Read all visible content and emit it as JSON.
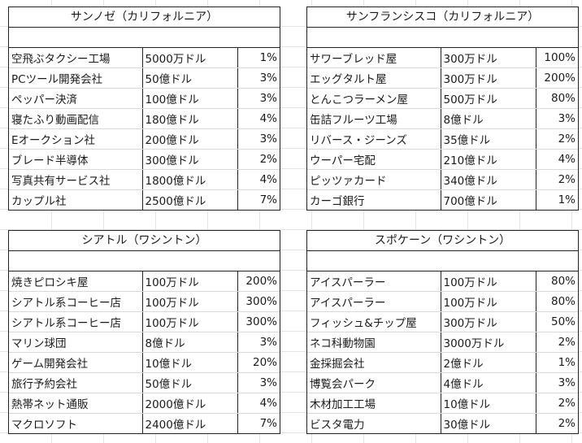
{
  "sheets": [
    {
      "title": "サンノゼ（カリフォルニア）",
      "rows": [
        [
          "空飛ぶタクシー工場",
          "5000万ドル",
          "1%"
        ],
        [
          "PCツール開発会社",
          "50億ドル",
          "3%"
        ],
        [
          "ペッパー決済",
          "100億ドル",
          "3%"
        ],
        [
          "寝たふり動画配信",
          "180億ドル",
          "4%"
        ],
        [
          "Eオークション社",
          "200億ドル",
          "3%"
        ],
        [
          "ブレード半導体",
          "300億ドル",
          "2%"
        ],
        [
          "写真共有サービス社",
          "1800億ドル",
          "4%"
        ],
        [
          "カップル社",
          "2500億ドル",
          "7%"
        ]
      ]
    },
    {
      "title": "サンフランシスコ（カリフォルニア）",
      "rows": [
        [
          "サワーブレッド屋",
          "300万ドル",
          "100%"
        ],
        [
          "エッグタルト屋",
          "300万ドル",
          "200%"
        ],
        [
          "とんこつラーメン屋",
          "500万ドル",
          "80%"
        ],
        [
          "缶詰フルーツ工場",
          "8億ドル",
          "3%"
        ],
        [
          "リバース・ジーンズ",
          "35億ドル",
          "2%"
        ],
        [
          "ウーパー宅配",
          "210億ドル",
          "4%"
        ],
        [
          "ピッツァカード",
          "340億ドル",
          "2%"
        ],
        [
          "カーゴ銀行",
          "700億ドル",
          "1%"
        ]
      ]
    },
    {
      "title": "シアトル（ワシントン）",
      "rows": [
        [
          "焼きピロシキ屋",
          "100万ドル",
          "200%"
        ],
        [
          "シアトル系コーヒー店",
          "100万ドル",
          "300%"
        ],
        [
          "シアトル系コーヒー店",
          "100万ドル",
          "300%"
        ],
        [
          "マリン球団",
          "8億ドル",
          "3%"
        ],
        [
          "ゲーム開発会社",
          "10億ドル",
          "20%"
        ],
        [
          "旅行予約会社",
          "50億ドル",
          "3%"
        ],
        [
          "熱帯ネット通販",
          "2000億ドル",
          "4%"
        ],
        [
          "マクロソフト",
          "2400億ドル",
          "7%"
        ]
      ]
    },
    {
      "title": "スポケーン（ワシントン）",
      "rows": [
        [
          "アイスパーラー",
          "100万ドル",
          "80%"
        ],
        [
          "アイスパーラー",
          "100万ドル",
          "80%"
        ],
        [
          "フィッシュ&チップ屋",
          "300万ドル",
          "50%"
        ],
        [
          "ネコ科動物園",
          "3000万ドル",
          "2%"
        ],
        [
          "金採掘会社",
          "2億ドル",
          "1%"
        ],
        [
          "博覧会パーク",
          "4億ドル",
          "3%"
        ],
        [
          "木材加工工場",
          "10億ドル",
          "2%"
        ],
        [
          "ビスタ電力",
          "30億ドル",
          "2%"
        ]
      ]
    }
  ]
}
